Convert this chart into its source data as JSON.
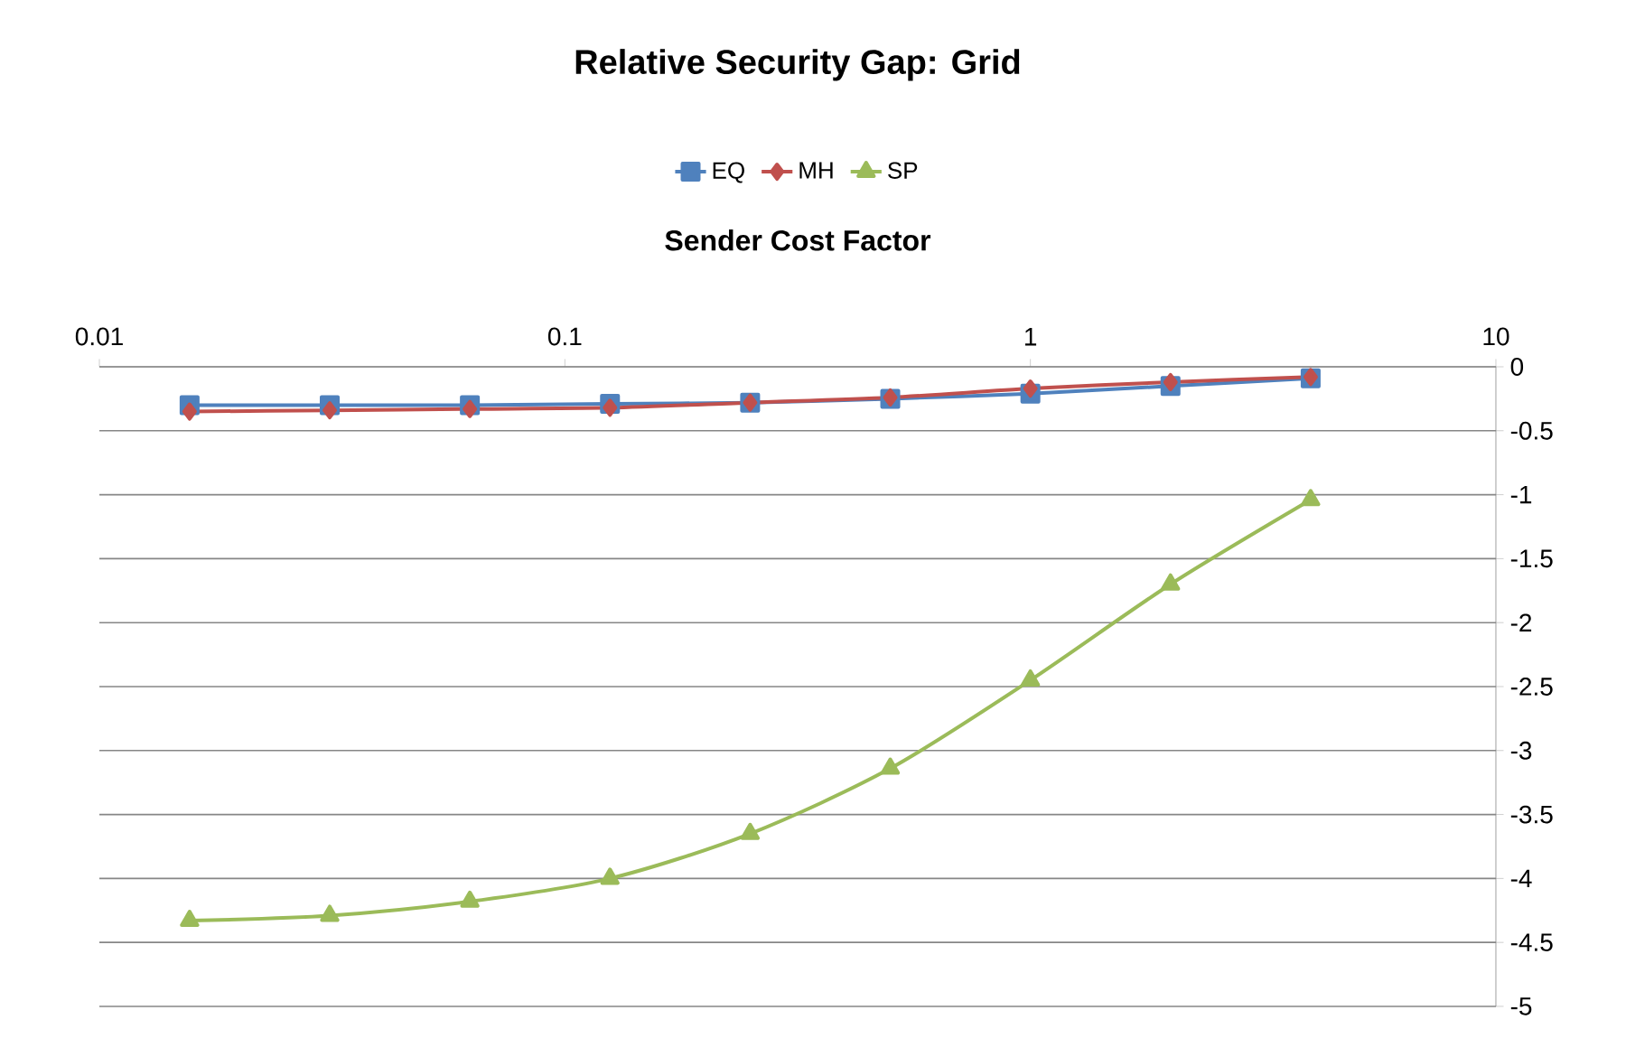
{
  "chart_data": {
    "type": "line",
    "title": "Relative Security Gap: Grid",
    "xlabel": "Sender Cost Factor",
    "x": [
      0.015625,
      0.03125,
      0.0625,
      0.125,
      0.25,
      0.5,
      1,
      2,
      4
    ],
    "series": [
      {
        "name": "EQ",
        "color": "#4f81bd",
        "marker": "square",
        "values": [
          -0.3,
          -0.3,
          -0.3,
          -0.29,
          -0.28,
          -0.25,
          -0.21,
          -0.15,
          -0.09
        ]
      },
      {
        "name": "MH",
        "color": "#c0504d",
        "marker": "diamond",
        "values": [
          -0.35,
          -0.34,
          -0.33,
          -0.32,
          -0.28,
          -0.24,
          -0.17,
          -0.12,
          -0.08
        ]
      },
      {
        "name": "SP",
        "color": "#9bbb59",
        "marker": "triangle",
        "values": [
          -4.33,
          -4.29,
          -4.18,
          -4.0,
          -3.65,
          -3.14,
          -2.45,
          -1.7,
          -1.04
        ]
      }
    ],
    "log": "x",
    "xlim": [
      0.01,
      10
    ],
    "xticks": [
      0.01,
      0.1,
      1,
      10
    ],
    "ylim": [
      -5,
      0
    ],
    "yticks": [
      0,
      -0.5,
      -1,
      -1.5,
      -2,
      -2.5,
      -3,
      -3.5,
      -4,
      -4.5,
      -5
    ],
    "grid": "y",
    "legend": "top",
    "line_style": "solid"
  }
}
